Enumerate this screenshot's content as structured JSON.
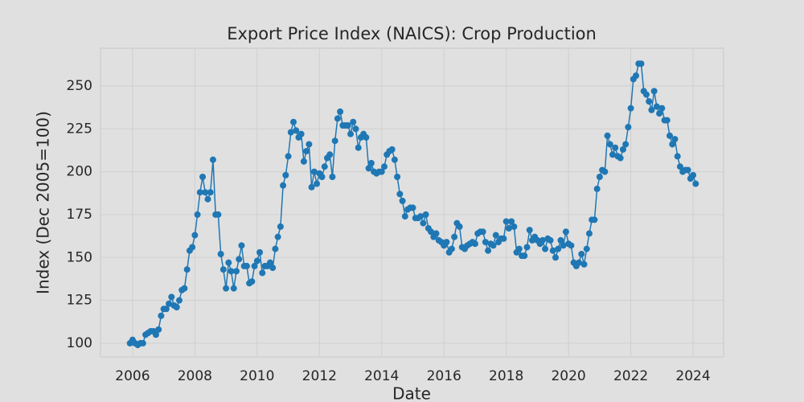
{
  "chart_data": {
    "type": "line",
    "title": "Export Price Index (NAICS): Crop Production",
    "x_label": "Date",
    "y_label": "Index (Dec 2005=100)",
    "color": "#1f77b4",
    "grid": true,
    "xlim": [
      2004.97,
      2024.98
    ],
    "ylim": [
      92,
      272
    ],
    "xticks": [
      2006,
      2008,
      2010,
      2012,
      2014,
      2016,
      2018,
      2020,
      2022,
      2024
    ],
    "yticks": [
      100,
      125,
      150,
      175,
      200,
      225,
      250
    ],
    "x": [
      "2005-12",
      "2006-01",
      "2006-02",
      "2006-03",
      "2006-04",
      "2006-05",
      "2006-06",
      "2006-07",
      "2006-08",
      "2006-09",
      "2006-10",
      "2006-11",
      "2006-12",
      "2007-01",
      "2007-02",
      "2007-03",
      "2007-04",
      "2007-05",
      "2007-06",
      "2007-07",
      "2007-08",
      "2007-09",
      "2007-10",
      "2007-11",
      "2007-12",
      "2008-01",
      "2008-02",
      "2008-03",
      "2008-04",
      "2008-05",
      "2008-06",
      "2008-07",
      "2008-08",
      "2008-09",
      "2008-10",
      "2008-11",
      "2008-12",
      "2009-01",
      "2009-02",
      "2009-03",
      "2009-04",
      "2009-05",
      "2009-06",
      "2009-07",
      "2009-08",
      "2009-09",
      "2009-10",
      "2009-11",
      "2009-12",
      "2010-01",
      "2010-02",
      "2010-03",
      "2010-04",
      "2010-05",
      "2010-06",
      "2010-07",
      "2010-08",
      "2010-09",
      "2010-10",
      "2010-11",
      "2010-12",
      "2011-01",
      "2011-02",
      "2011-03",
      "2011-04",
      "2011-05",
      "2011-06",
      "2011-07",
      "2011-08",
      "2011-09",
      "2011-10",
      "2011-11",
      "2011-12",
      "2012-01",
      "2012-02",
      "2012-03",
      "2012-04",
      "2012-05",
      "2012-06",
      "2012-07",
      "2012-08",
      "2012-09",
      "2012-10",
      "2012-11",
      "2012-12",
      "2013-01",
      "2013-02",
      "2013-03",
      "2013-04",
      "2013-05",
      "2013-06",
      "2013-07",
      "2013-08",
      "2013-09",
      "2013-10",
      "2013-11",
      "2013-12",
      "2014-01",
      "2014-02",
      "2014-03",
      "2014-04",
      "2014-05",
      "2014-06",
      "2014-07",
      "2014-08",
      "2014-09",
      "2014-10",
      "2014-11",
      "2014-12",
      "2015-01",
      "2015-02",
      "2015-03",
      "2015-04",
      "2015-05",
      "2015-06",
      "2015-07",
      "2015-08",
      "2015-09",
      "2015-10",
      "2015-11",
      "2015-12",
      "2016-01",
      "2016-02",
      "2016-03",
      "2016-04",
      "2016-05",
      "2016-06",
      "2016-07",
      "2016-08",
      "2016-09",
      "2016-10",
      "2016-11",
      "2016-12",
      "2017-01",
      "2017-02",
      "2017-03",
      "2017-04",
      "2017-05",
      "2017-06",
      "2017-07",
      "2017-08",
      "2017-09",
      "2017-10",
      "2017-11",
      "2017-12",
      "2018-01",
      "2018-02",
      "2018-03",
      "2018-04",
      "2018-05",
      "2018-06",
      "2018-07",
      "2018-08",
      "2018-09",
      "2018-10",
      "2018-11",
      "2018-12",
      "2019-01",
      "2019-02",
      "2019-03",
      "2019-04",
      "2019-05",
      "2019-06",
      "2019-07",
      "2019-08",
      "2019-09",
      "2019-10",
      "2019-11",
      "2019-12",
      "2020-01",
      "2020-02",
      "2020-03",
      "2020-04",
      "2020-05",
      "2020-06",
      "2020-07",
      "2020-08",
      "2020-09",
      "2020-10",
      "2020-11",
      "2020-12",
      "2021-01",
      "2021-02",
      "2021-03",
      "2021-04",
      "2021-05",
      "2021-06",
      "2021-07",
      "2021-08",
      "2021-09",
      "2021-10",
      "2021-11",
      "2021-12",
      "2022-01",
      "2022-02",
      "2022-03",
      "2022-04",
      "2022-05",
      "2022-06",
      "2022-07",
      "2022-08",
      "2022-09",
      "2022-10",
      "2022-11",
      "2022-12",
      "2023-01",
      "2023-02",
      "2023-03",
      "2023-04",
      "2023-05",
      "2023-06",
      "2023-07",
      "2023-08",
      "2023-09",
      "2023-10",
      "2023-11",
      "2023-12",
      "2024-01",
      "2024-02"
    ],
    "values": [
      100,
      102,
      100,
      99,
      100,
      100,
      105,
      106,
      107,
      107,
      105,
      108,
      116,
      120,
      120,
      123,
      127,
      122,
      121,
      125,
      131,
      132,
      143,
      154,
      156,
      163,
      175,
      188,
      197,
      188,
      184,
      188,
      207,
      175,
      175,
      152,
      143,
      132,
      147,
      142,
      132,
      142,
      149,
      157,
      145,
      145,
      135,
      136,
      145,
      148,
      153,
      141,
      145,
      145,
      147,
      144,
      155,
      162,
      168,
      192,
      198,
      209,
      223,
      229,
      224,
      220,
      222,
      206,
      212,
      216,
      191,
      200,
      193,
      199,
      197,
      203,
      208,
      210,
      197,
      218,
      231,
      235,
      227,
      227,
      227,
      222,
      229,
      225,
      214,
      220,
      222,
      220,
      202,
      205,
      200,
      199,
      200,
      200,
      203,
      210,
      212,
      213,
      207,
      197,
      187,
      183,
      174,
      178,
      179,
      179,
      173,
      173,
      174,
      170,
      175,
      167,
      165,
      162,
      164,
      160,
      159,
      157,
      159,
      153,
      155,
      162,
      170,
      168,
      156,
      155,
      157,
      158,
      159,
      158,
      164,
      165,
      165,
      159,
      154,
      158,
      157,
      163,
      159,
      161,
      161,
      171,
      167,
      171,
      168,
      153,
      155,
      151,
      151,
      156,
      166,
      160,
      162,
      160,
      158,
      160,
      155,
      161,
      160,
      154,
      150,
      155,
      160,
      157,
      165,
      158,
      157,
      147,
      145,
      147,
      152,
      146,
      155,
      164,
      172,
      172,
      190,
      197,
      201,
      200,
      221,
      216,
      210,
      214,
      209,
      208,
      213,
      216,
      226,
      237,
      254,
      256,
      263,
      263,
      247,
      245,
      241,
      236,
      247,
      238,
      234,
      237,
      230,
      230,
      221,
      216,
      219,
      209,
      203,
      200,
      201,
      201,
      196,
      198,
      193
    ]
  }
}
